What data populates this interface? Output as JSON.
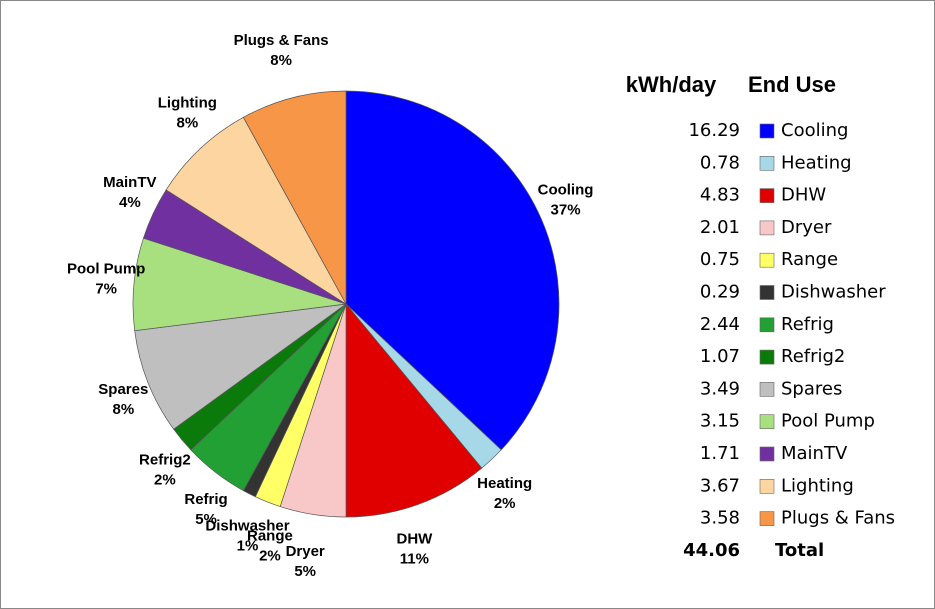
{
  "chart_data": {
    "type": "pie",
    "categories": [
      "Cooling",
      "Heating",
      "DHW",
      "Dryer",
      "Range",
      "Dishwasher",
      "Refrig",
      "Refrig2",
      "Spares",
      "Pool Pump",
      "MainTV",
      "Lighting",
      "Plugs & Fans"
    ],
    "values": [
      37,
      2,
      11,
      5,
      2,
      1,
      5,
      2,
      8,
      7,
      4,
      8,
      8
    ],
    "value_labels": [
      "37%",
      "2%",
      "11%",
      "5%",
      "2%",
      "1%",
      "5%",
      "2%",
      "8%",
      "7%",
      "4%",
      "8%",
      "8%"
    ],
    "colors": [
      "#0000ff",
      "#a6d8e8",
      "#e00000",
      "#f8c8c8",
      "#ffff66",
      "#333333",
      "#22a033",
      "#0a7a0a",
      "#bfbfbf",
      "#a8e080",
      "#7030a0",
      "#fcd5a0",
      "#f79646"
    ]
  },
  "table": {
    "headers": [
      "kWh/day",
      "End Use"
    ],
    "kwh": [
      16.29,
      0.78,
      4.83,
      2.01,
      0.75,
      0.29,
      2.44,
      1.07,
      3.49,
      3.15,
      1.71,
      3.67,
      3.58
    ],
    "total": 44.06,
    "total_label": "Total"
  }
}
